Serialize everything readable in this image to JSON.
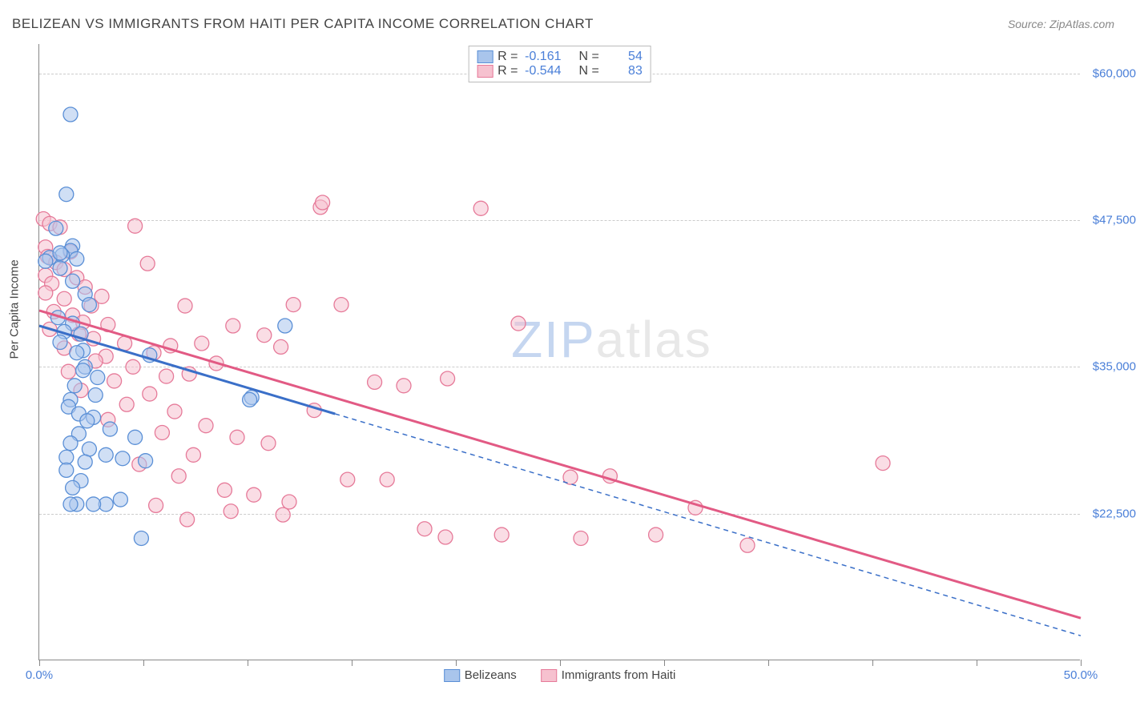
{
  "title": "BELIZEAN VS IMMIGRANTS FROM HAITI PER CAPITA INCOME CORRELATION CHART",
  "source": "Source: ZipAtlas.com",
  "watermark_prefix": "ZIP",
  "watermark_suffix": "atlas",
  "y_axis_title": "Per Capita Income",
  "chart": {
    "type": "scatter",
    "xlim": [
      0,
      50
    ],
    "ylim": [
      10000,
      62500
    ],
    "x_ticks": [
      0,
      5,
      10,
      15,
      20,
      25,
      30,
      35,
      40,
      45,
      50
    ],
    "x_tick_labels": {
      "0": "0.0%",
      "50": "50.0%"
    },
    "y_ticks": [
      22500,
      35000,
      47500,
      60000
    ],
    "y_tick_labels": [
      "$22,500",
      "$35,000",
      "$47,500",
      "$60,000"
    ],
    "background_color": "#ffffff",
    "grid_color": "#cccccc",
    "marker_radius": 9,
    "marker_opacity": 0.55,
    "marker_stroke_width": 1.3,
    "trend_line_width": 3,
    "series": [
      {
        "name": "Belizeans",
        "label": "Belizeans",
        "color_fill": "#a9c5ec",
        "color_stroke": "#5a8fd6",
        "line_color": "#3a6fc8",
        "R": "-0.161",
        "N": "54",
        "trend": {
          "x1": 0,
          "y1": 38500,
          "x2": 14.2,
          "y2": 31000,
          "extrap_x2": 50,
          "extrap_y2": 12100
        },
        "points": [
          [
            1.5,
            56500
          ],
          [
            1.3,
            49700
          ],
          [
            0.8,
            46800
          ],
          [
            1.6,
            45300
          ],
          [
            1.5,
            44900
          ],
          [
            1.1,
            44500
          ],
          [
            0.5,
            44300
          ],
          [
            1.8,
            44200
          ],
          [
            1.0,
            44700
          ],
          [
            0.3,
            44000
          ],
          [
            1.0,
            43400
          ],
          [
            1.6,
            42300
          ],
          [
            2.2,
            41200
          ],
          [
            2.4,
            40300
          ],
          [
            0.9,
            39200
          ],
          [
            1.6,
            38700
          ],
          [
            1.2,
            38000
          ],
          [
            2.0,
            37800
          ],
          [
            1.0,
            37100
          ],
          [
            2.1,
            36400
          ],
          [
            1.8,
            36200
          ],
          [
            2.2,
            35000
          ],
          [
            2.1,
            34700
          ],
          [
            2.8,
            34100
          ],
          [
            1.7,
            33400
          ],
          [
            2.7,
            32600
          ],
          [
            1.5,
            32200
          ],
          [
            1.4,
            31600
          ],
          [
            1.9,
            31000
          ],
          [
            2.6,
            30700
          ],
          [
            2.3,
            30400
          ],
          [
            3.4,
            29700
          ],
          [
            1.9,
            29300
          ],
          [
            1.5,
            28500
          ],
          [
            2.4,
            28000
          ],
          [
            3.2,
            27500
          ],
          [
            1.3,
            27300
          ],
          [
            2.2,
            26900
          ],
          [
            1.3,
            26200
          ],
          [
            2.0,
            25300
          ],
          [
            1.6,
            24700
          ],
          [
            3.2,
            23300
          ],
          [
            1.8,
            23300
          ],
          [
            2.6,
            23300
          ],
          [
            1.5,
            23300
          ],
          [
            10.2,
            32400
          ],
          [
            10.1,
            32200
          ],
          [
            11.8,
            38500
          ],
          [
            4.6,
            29000
          ],
          [
            5.1,
            27000
          ],
          [
            5.3,
            36000
          ],
          [
            4.9,
            20400
          ],
          [
            3.9,
            23700
          ],
          [
            4.0,
            27200
          ]
        ]
      },
      {
        "name": "Immigrants from Haiti",
        "label": "Immigrants from Haiti",
        "color_fill": "#f6c1cf",
        "color_stroke": "#e67a99",
        "line_color": "#e25a84",
        "R": "-0.544",
        "N": "83",
        "trend": {
          "x1": 0,
          "y1": 39800,
          "x2": 50,
          "y2": 13600
        },
        "points": [
          [
            0.2,
            47600
          ],
          [
            0.5,
            47200
          ],
          [
            1.0,
            46900
          ],
          [
            0.3,
            45200
          ],
          [
            1.5,
            44800
          ],
          [
            0.4,
            44400
          ],
          [
            0.8,
            43900
          ],
          [
            1.2,
            43300
          ],
          [
            0.3,
            42800
          ],
          [
            1.8,
            42600
          ],
          [
            0.6,
            42100
          ],
          [
            2.2,
            41800
          ],
          [
            0.3,
            41300
          ],
          [
            4.6,
            47000
          ],
          [
            3.0,
            41000
          ],
          [
            1.2,
            40800
          ],
          [
            2.5,
            40200
          ],
          [
            0.7,
            39700
          ],
          [
            1.6,
            39400
          ],
          [
            2.1,
            38800
          ],
          [
            3.3,
            38600
          ],
          [
            0.5,
            38200
          ],
          [
            1.9,
            37800
          ],
          [
            2.6,
            37400
          ],
          [
            4.1,
            37000
          ],
          [
            1.2,
            36600
          ],
          [
            5.2,
            43800
          ],
          [
            5.5,
            36200
          ],
          [
            6.3,
            36800
          ],
          [
            3.2,
            35900
          ],
          [
            2.7,
            35500
          ],
          [
            7.0,
            40200
          ],
          [
            4.5,
            35000
          ],
          [
            1.4,
            34600
          ],
          [
            6.1,
            34200
          ],
          [
            7.8,
            37000
          ],
          [
            3.6,
            33800
          ],
          [
            8.5,
            35300
          ],
          [
            2.0,
            33000
          ],
          [
            5.3,
            32700
          ],
          [
            7.2,
            34400
          ],
          [
            9.3,
            38500
          ],
          [
            4.2,
            31800
          ],
          [
            10.8,
            37700
          ],
          [
            6.5,
            31200
          ],
          [
            11.6,
            36700
          ],
          [
            3.3,
            30500
          ],
          [
            8.0,
            30000
          ],
          [
            5.9,
            29400
          ],
          [
            12.2,
            40300
          ],
          [
            13.5,
            48600
          ],
          [
            14.5,
            40300
          ],
          [
            9.5,
            29000
          ],
          [
            7.4,
            27500
          ],
          [
            4.8,
            26700
          ],
          [
            11.0,
            28500
          ],
          [
            6.7,
            25700
          ],
          [
            13.2,
            31300
          ],
          [
            8.9,
            24500
          ],
          [
            16.1,
            33700
          ],
          [
            10.3,
            24100
          ],
          [
            17.5,
            33400
          ],
          [
            5.6,
            23200
          ],
          [
            12.0,
            23500
          ],
          [
            19.6,
            34000
          ],
          [
            14.8,
            25400
          ],
          [
            7.1,
            22000
          ],
          [
            21.2,
            48500
          ],
          [
            16.7,
            25400
          ],
          [
            18.5,
            21200
          ],
          [
            23.0,
            38700
          ],
          [
            19.5,
            20500
          ],
          [
            25.5,
            25600
          ],
          [
            27.4,
            25700
          ],
          [
            9.2,
            22700
          ],
          [
            11.7,
            22400
          ],
          [
            29.6,
            20700
          ],
          [
            31.5,
            23000
          ],
          [
            34.0,
            19800
          ],
          [
            40.5,
            26800
          ],
          [
            13.6,
            49000
          ],
          [
            22.2,
            20700
          ],
          [
            26.0,
            20400
          ]
        ]
      }
    ]
  },
  "legend_top_prefix_R": "R =",
  "legend_top_prefix_N": "N ="
}
